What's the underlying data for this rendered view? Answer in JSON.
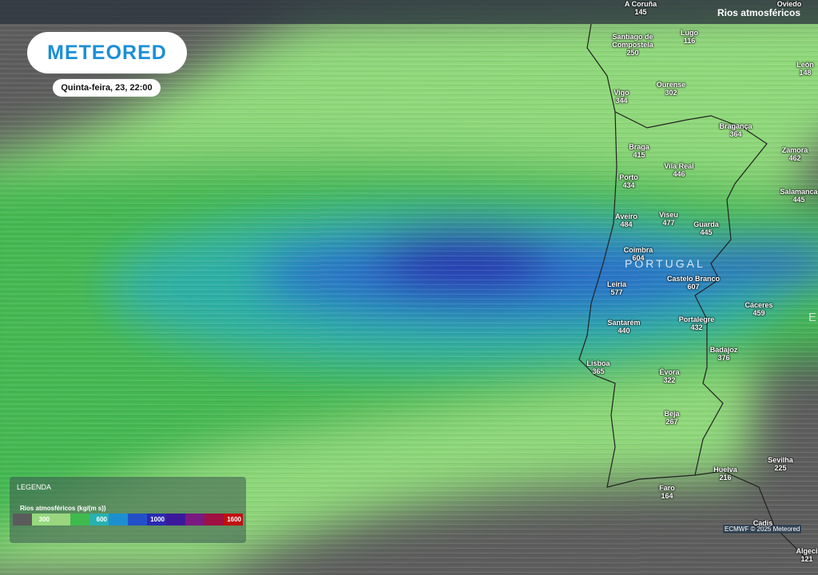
{
  "header": {
    "layer": "Rios atmosféricos"
  },
  "logo": "METEORED",
  "date": "Quinta-feira, 23, 22:00",
  "country": "PORTUGAL",
  "country_partial": "E",
  "cities": [
    {
      "name": "A Coruña",
      "value": 145
    },
    {
      "name": "Oviedo"
    },
    {
      "name": "Lugo",
      "value": 116
    },
    {
      "name": "Santiago de Compostela",
      "value": 250
    },
    {
      "name": "León",
      "value": 148
    },
    {
      "name": "Vigo",
      "value": 344
    },
    {
      "name": "Ourense",
      "value": 302
    },
    {
      "name": "Bragança",
      "value": 364
    },
    {
      "name": "Braga",
      "value": 415
    },
    {
      "name": "Zamora",
      "value": 462
    },
    {
      "name": "Vila Real",
      "value": 446
    },
    {
      "name": "Porto",
      "value": 434
    },
    {
      "name": "Salamanca",
      "value": 445
    },
    {
      "name": "Aveiro",
      "value": 484
    },
    {
      "name": "Viseu",
      "value": 477
    },
    {
      "name": "Guarda",
      "value": 445
    },
    {
      "name": "Coimbra",
      "value": 604
    },
    {
      "name": "Castelo Branco",
      "value": 607
    },
    {
      "name": "Leiria",
      "value": 577
    },
    {
      "name": "Cáceres",
      "value": 459
    },
    {
      "name": "Santarém",
      "value": 440
    },
    {
      "name": "Portalegre",
      "value": 432
    },
    {
      "name": "Badajoz",
      "value": 376
    },
    {
      "name": "Lisboa",
      "value": 365
    },
    {
      "name": "Évora",
      "value": 322
    },
    {
      "name": "Beja",
      "value": 267
    },
    {
      "name": "Huelva",
      "value": 216
    },
    {
      "name": "Sevilha",
      "value": 225
    },
    {
      "name": "Faro",
      "value": 164
    },
    {
      "name": "Cadis"
    },
    {
      "name": "Algeci",
      "value": 121
    }
  ],
  "legend": {
    "title": "LEGENDA",
    "subtitle": "Rios atmosféricos (kg/(m s))",
    "colors": [
      "#5b5b5b",
      "#97d97f",
      "#9ad67e",
      "#3fba4e",
      "#27b2b0",
      "#1d8fd0",
      "#2350c8",
      "#2a2ab0",
      "#3a1a9a",
      "#7a1a80",
      "#a01040",
      "#c01010"
    ],
    "labels": [
      300,
      600,
      1000,
      1600
    ]
  },
  "credit": "ECMWF © 2025 Meteored"
}
